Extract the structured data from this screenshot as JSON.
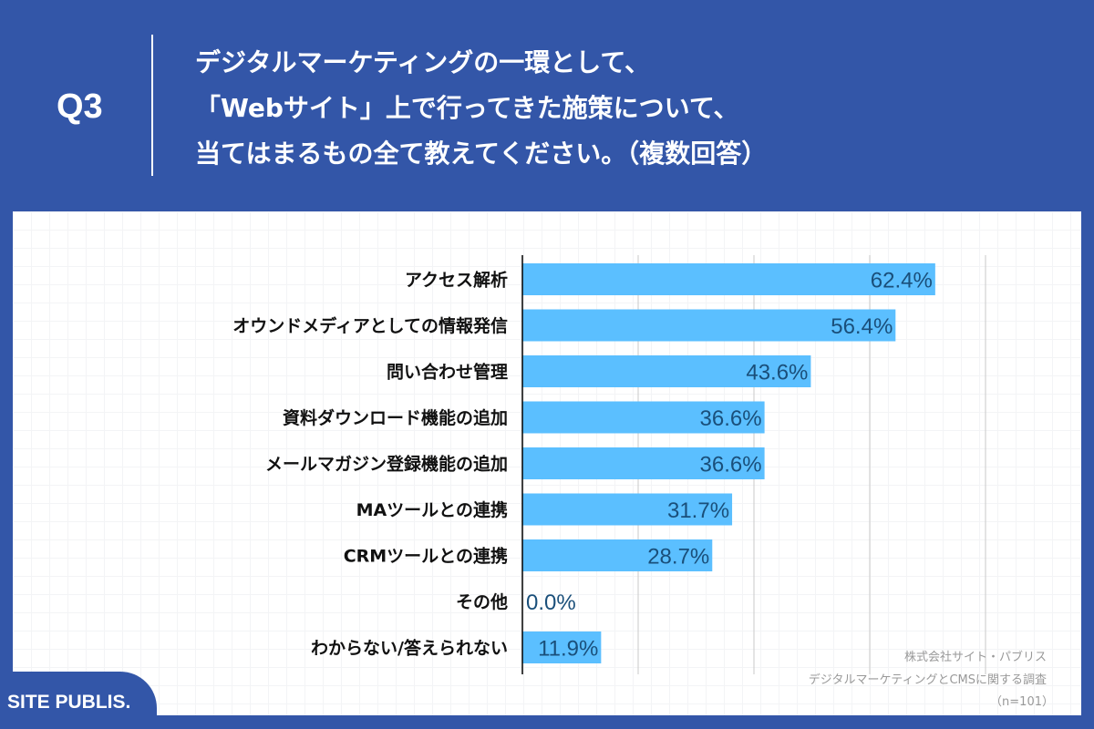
{
  "header": {
    "q_label": "Q3",
    "title_lines": [
      "デジタルマーケティングの一環として、",
      "「Webサイト」上で行ってきた施策について、",
      "当てはまるもの全て教えてください。（複数回答）"
    ]
  },
  "credit": {
    "line1": "株式会社サイト・パブリス",
    "line2": "デジタルマーケティングとCMSに関する調査",
    "line3": "（n=101）"
  },
  "logo": "SITE PUBLIS.",
  "colors": {
    "background": "#3356a8",
    "bar": "#5bbfff",
    "value_label": "#1a4f7a"
  },
  "chart_data": {
    "type": "bar",
    "orientation": "horizontal",
    "unit": "%",
    "grid": true,
    "xlim": [
      0,
      70
    ],
    "categories": [
      "アクセス解析",
      "オウンドメディアとしての情報発信",
      "問い合わせ管理",
      "資料ダウンロード機能の追加",
      "メールマガジン登録機能の追加",
      "MAツールとの連携",
      "CRMツールとの連携",
      "その他",
      "わからない/答えられない"
    ],
    "values": [
      62.4,
      56.4,
      43.6,
      36.6,
      36.6,
      31.7,
      28.7,
      0.0,
      11.9
    ],
    "labels": [
      "62.4%",
      "56.4%",
      "43.6%",
      "36.6%",
      "36.6%",
      "31.7%",
      "28.7%",
      "0.0%",
      "11.9%"
    ]
  }
}
